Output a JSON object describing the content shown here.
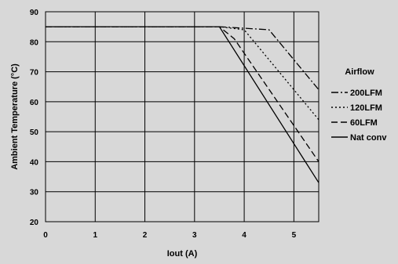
{
  "chart_data": {
    "type": "line",
    "title": "",
    "xlabel": "Iout  (A)",
    "ylabel": "Ambient Temperature (°C)",
    "xlim": [
      0,
      5.5
    ],
    "ylim": [
      20,
      90
    ],
    "x_ticks": [
      "0",
      "1",
      "2",
      "3",
      "4",
      "5"
    ],
    "y_ticks": [
      "20",
      "30",
      "40",
      "50",
      "60",
      "70",
      "80",
      "90"
    ],
    "grid": true,
    "legend": {
      "title": "Airflow",
      "placement": "right"
    },
    "series": [
      {
        "name": "200LFM",
        "style": "dashdot",
        "x": [
          0,
          3.5,
          4.5,
          5.5
        ],
        "y": [
          85,
          85,
          84,
          64
        ]
      },
      {
        "name": "120LFM",
        "style": "dotted",
        "x": [
          0,
          3.5,
          4.0,
          5.5
        ],
        "y": [
          85,
          85,
          84,
          54
        ]
      },
      {
        "name": "60LFM",
        "style": "dashed",
        "x": [
          0,
          3.5,
          3.8,
          5.5
        ],
        "y": [
          85,
          85,
          81,
          40
        ]
      },
      {
        "name": "Nat conv",
        "style": "solid",
        "x": [
          0,
          3.5,
          5.5
        ],
        "y": [
          85,
          85,
          33
        ]
      }
    ],
    "colors": {
      "background": "#d8d8d8",
      "plot_background": "#d8d8d8",
      "line": "#000000"
    }
  }
}
